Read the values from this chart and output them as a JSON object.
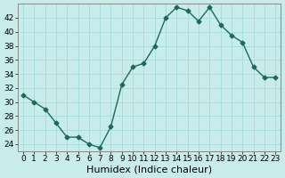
{
  "x": [
    0,
    1,
    2,
    3,
    4,
    5,
    6,
    7,
    8,
    9,
    10,
    11,
    12,
    13,
    14,
    15,
    16,
    17,
    18,
    19,
    20,
    21,
    22,
    23
  ],
  "y": [
    31,
    30,
    29,
    27,
    25,
    25,
    24,
    23.5,
    26.5,
    32.5,
    35,
    35.5,
    38,
    42,
    43.5,
    43,
    41.5,
    43.5,
    41,
    39.5,
    38.5,
    35,
    33.5,
    33.5
  ],
  "line_color": "#1a6b5a",
  "marker_color": "#1a6b5a",
  "bg_color": "#c8ecec",
  "grid_color": "#aadddd",
  "xlabel": "Humidex (Indice chaleur)",
  "ylim": [
    23,
    44
  ],
  "xlim": [
    -0.5,
    23.5
  ],
  "yticks": [
    24,
    26,
    28,
    30,
    32,
    34,
    36,
    38,
    40,
    42
  ],
  "xticks": [
    0,
    1,
    2,
    3,
    4,
    5,
    6,
    7,
    8,
    9,
    10,
    11,
    12,
    13,
    14,
    15,
    16,
    17,
    18,
    19,
    20,
    21,
    22,
    23
  ],
  "xtick_labels": [
    "0",
    "1",
    "2",
    "3",
    "4",
    "5",
    "6",
    "7",
    "8",
    "9",
    "10",
    "11",
    "12",
    "13",
    "14",
    "15",
    "16",
    "17",
    "18",
    "19",
    "20",
    "21",
    "22",
    "23"
  ],
  "xlabel_fontsize": 8,
  "tick_fontsize": 6.5
}
